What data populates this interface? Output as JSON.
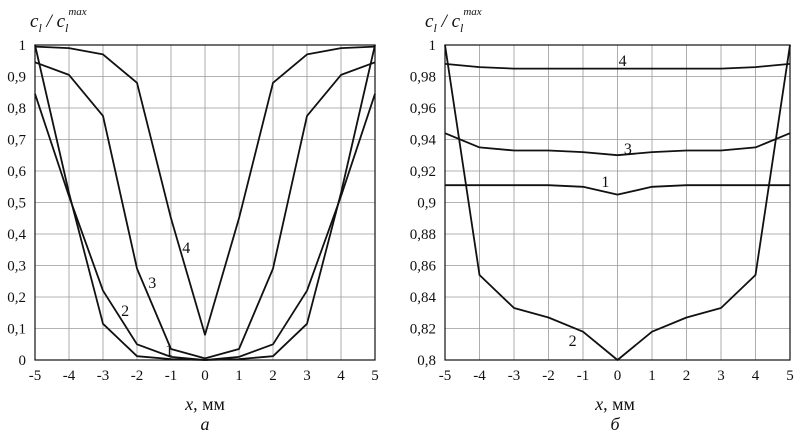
{
  "chart_data": [
    {
      "type": "line",
      "panel_label": "а",
      "ylabel": {
        "main": "c",
        "sub": "l",
        "slash": "/",
        "main2": "c",
        "sub2": "l",
        "sup": "max"
      },
      "xlabel": {
        "var": "x",
        "unit": ", мм"
      },
      "xlim": [
        -5,
        5
      ],
      "ylim": [
        0,
        1
      ],
      "xticks": [
        -5,
        -4,
        -3,
        -2,
        -1,
        0,
        1,
        2,
        3,
        4,
        5
      ],
      "xtick_labels": [
        "-5",
        "-4",
        "-3",
        "-2",
        "-1",
        "0",
        "1",
        "2",
        "3",
        "4",
        "5"
      ],
      "yticks": [
        0,
        0.1,
        0.2,
        0.3,
        0.4,
        0.5,
        0.6,
        0.7,
        0.8,
        0.9,
        1.0
      ],
      "ytick_labels": [
        "0",
        "0,1",
        "0,2",
        "0,3",
        "0,4",
        "0,5",
        "0,6",
        "0,7",
        "0,8",
        "0,9",
        "1"
      ],
      "grid": true,
      "series": [
        {
          "name": "1",
          "x": [
            -5,
            -4,
            -3,
            -2,
            -1,
            0,
            1,
            2,
            3,
            4,
            5
          ],
          "values": [
            1.0,
            0.53,
            0.115,
            0.012,
            0.003,
            0.0,
            0.003,
            0.012,
            0.115,
            0.53,
            1.0
          ],
          "label_at": [
            -1.05,
            0.03
          ]
        },
        {
          "name": "2",
          "x": [
            -5,
            -4,
            -3,
            -2,
            -1,
            0,
            1,
            2,
            3,
            4,
            5
          ],
          "values": [
            0.845,
            0.52,
            0.22,
            0.05,
            0.01,
            0.0,
            0.01,
            0.05,
            0.22,
            0.52,
            0.845
          ],
          "label_at": [
            -2.35,
            0.155
          ]
        },
        {
          "name": "3",
          "x": [
            -5,
            -4,
            -3,
            -2,
            -1,
            0,
            1,
            2,
            3,
            4,
            5
          ],
          "values": [
            0.945,
            0.905,
            0.775,
            0.29,
            0.035,
            0.005,
            0.035,
            0.29,
            0.775,
            0.905,
            0.945
          ],
          "label_at": [
            -1.55,
            0.245
          ]
        },
        {
          "name": "4",
          "x": [
            -5,
            -4,
            -3,
            -2,
            -1,
            0,
            1,
            2,
            3,
            4,
            5
          ],
          "values": [
            0.995,
            0.99,
            0.97,
            0.88,
            0.45,
            0.08,
            0.45,
            0.88,
            0.97,
            0.99,
            0.995
          ],
          "label_at": [
            -0.55,
            0.355
          ]
        }
      ]
    },
    {
      "type": "line",
      "panel_label": "б",
      "ylabel": {
        "main": "c",
        "sub": "l",
        "slash": "/",
        "main2": "c",
        "sub2": "l",
        "sup": "max"
      },
      "xlabel": {
        "var": "x",
        "unit": ", мм"
      },
      "xlim": [
        -5,
        5
      ],
      "ylim": [
        0.8,
        1.0
      ],
      "xticks": [
        -5,
        -4,
        -3,
        -2,
        -1,
        0,
        1,
        2,
        3,
        4,
        5
      ],
      "xtick_labels": [
        "-5",
        "-4",
        "-3",
        "-2",
        "-1",
        "0",
        "1",
        "2",
        "3",
        "4",
        "5"
      ],
      "yticks": [
        0.8,
        0.82,
        0.84,
        0.86,
        0.88,
        0.9,
        0.92,
        0.94,
        0.96,
        0.98,
        1.0
      ],
      "ytick_labels": [
        "0,8",
        "0,82",
        "0,84",
        "0,86",
        "0,88",
        "0,9",
        "0,92",
        "0,94",
        "0,96",
        "0,98",
        "1"
      ],
      "grid": true,
      "series": [
        {
          "name": "1",
          "x": [
            -5,
            -4,
            -3,
            -2,
            -1,
            0,
            1,
            2,
            3,
            4,
            5
          ],
          "values": [
            0.911,
            0.911,
            0.911,
            0.911,
            0.91,
            0.905,
            0.91,
            0.911,
            0.911,
            0.911,
            0.911
          ],
          "label_at": [
            -0.35,
            0.913
          ]
        },
        {
          "name": "2",
          "x": [
            -5,
            -4,
            -3,
            -2,
            -1,
            0,
            1,
            2,
            3,
            4,
            5
          ],
          "values": [
            1.0,
            0.854,
            0.833,
            0.827,
            0.818,
            0.8,
            0.818,
            0.827,
            0.833,
            0.854,
            1.0
          ],
          "label_at": [
            -1.3,
            0.812
          ]
        },
        {
          "name": "3",
          "x": [
            -5,
            -4,
            -3,
            -2,
            -1,
            0,
            1,
            2,
            3,
            4,
            5
          ],
          "values": [
            0.944,
            0.935,
            0.933,
            0.933,
            0.932,
            0.93,
            0.932,
            0.933,
            0.933,
            0.935,
            0.944
          ],
          "label_at": [
            0.3,
            0.934
          ]
        },
        {
          "name": "4",
          "x": [
            -5,
            -4,
            -3,
            -2,
            -1,
            0,
            1,
            2,
            3,
            4,
            5
          ],
          "values": [
            0.988,
            0.986,
            0.985,
            0.985,
            0.985,
            0.985,
            0.985,
            0.985,
            0.985,
            0.986,
            0.988
          ],
          "label_at": [
            0.15,
            0.99
          ]
        }
      ]
    }
  ]
}
